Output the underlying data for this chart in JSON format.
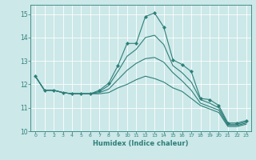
{
  "title": "",
  "xlabel": "Humidex (Indice chaleur)",
  "bg_color": "#cce8e8",
  "line_color": "#2e7f7a",
  "grid_color": "#ffffff",
  "xlim": [
    -0.5,
    23.5
  ],
  "ylim": [
    10.0,
    15.4
  ],
  "yticks": [
    10,
    11,
    12,
    13,
    14,
    15
  ],
  "xticks": [
    0,
    1,
    2,
    3,
    4,
    5,
    6,
    7,
    8,
    9,
    10,
    11,
    12,
    13,
    14,
    15,
    16,
    17,
    18,
    19,
    20,
    21,
    22,
    23
  ],
  "lines": [
    {
      "x": [
        0,
        1,
        2,
        3,
        4,
        5,
        6,
        7,
        8,
        9,
        10,
        11,
        12,
        13,
        14,
        15,
        16,
        17,
        18,
        19,
        20,
        21,
        22,
        23
      ],
      "y": [
        12.35,
        11.75,
        11.75,
        11.65,
        11.6,
        11.6,
        11.6,
        11.75,
        12.05,
        12.8,
        13.75,
        13.75,
        14.9,
        15.05,
        14.45,
        13.05,
        12.85,
        12.55,
        11.4,
        11.35,
        11.1,
        10.35,
        10.35,
        10.45
      ],
      "marker": true
    },
    {
      "x": [
        0,
        1,
        2,
        3,
        4,
        5,
        6,
        7,
        8,
        9,
        10,
        11,
        12,
        13,
        14,
        15,
        16,
        17,
        18,
        19,
        20,
        21,
        22,
        23
      ],
      "y": [
        12.35,
        11.75,
        11.75,
        11.65,
        11.6,
        11.6,
        11.6,
        11.7,
        11.95,
        12.55,
        13.2,
        13.5,
        14.0,
        14.1,
        13.7,
        12.8,
        12.5,
        12.1,
        11.35,
        11.2,
        11.0,
        10.3,
        10.3,
        10.4
      ],
      "marker": false
    },
    {
      "x": [
        0,
        1,
        2,
        3,
        4,
        5,
        6,
        7,
        8,
        9,
        10,
        11,
        12,
        13,
        14,
        15,
        16,
        17,
        18,
        19,
        20,
        21,
        22,
        23
      ],
      "y": [
        12.35,
        11.75,
        11.75,
        11.65,
        11.6,
        11.6,
        11.6,
        11.65,
        11.8,
        12.2,
        12.6,
        12.9,
        13.1,
        13.15,
        12.95,
        12.5,
        12.15,
        11.75,
        11.2,
        11.05,
        10.9,
        10.25,
        10.25,
        10.35
      ],
      "marker": false
    },
    {
      "x": [
        0,
        1,
        2,
        3,
        4,
        5,
        6,
        7,
        8,
        9,
        10,
        11,
        12,
        13,
        14,
        15,
        16,
        17,
        18,
        19,
        20,
        21,
        22,
        23
      ],
      "y": [
        12.35,
        11.75,
        11.75,
        11.65,
        11.6,
        11.6,
        11.6,
        11.6,
        11.65,
        11.85,
        12.0,
        12.2,
        12.35,
        12.25,
        12.1,
        11.85,
        11.7,
        11.4,
        11.1,
        10.95,
        10.8,
        10.2,
        10.2,
        10.3
      ],
      "marker": false
    }
  ]
}
